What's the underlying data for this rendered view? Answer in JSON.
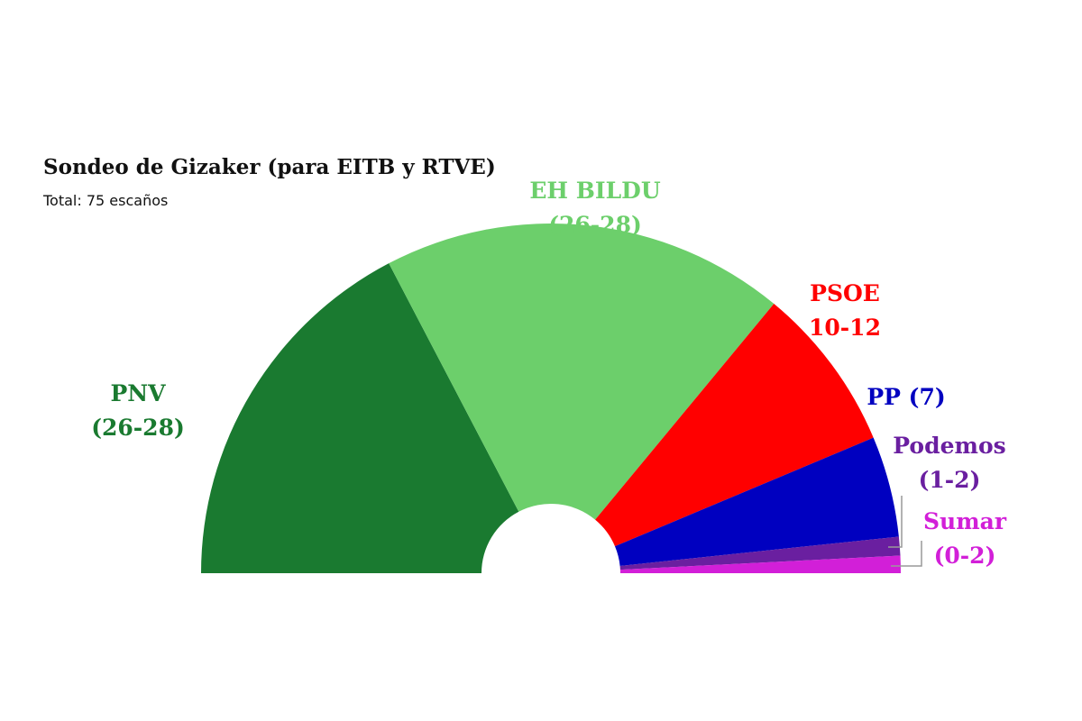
{
  "chart_data": {
    "type": "semicircle",
    "title": "Sondeo de Gizaker (para EITB y RTVE)",
    "subtitle": "Total: 75 escaños",
    "categories": [
      "PNV",
      "EH BILDU",
      "PSOE",
      "PP",
      "Podemos",
      "Sumar"
    ],
    "labels": [
      [
        "PNV",
        "(26-28)"
      ],
      [
        "EH BILDU",
        "(26-28)"
      ],
      [
        "PSOE",
        "10-12"
      ],
      [
        "PP (7)"
      ],
      [
        "Podemos",
        "(1-2)"
      ],
      [
        "Sumar",
        "(0-2)"
      ]
    ],
    "values": [
      26,
      28,
      11.5,
      7,
      1.3,
      1.2
    ],
    "colors": [
      "#1a7a30",
      "#6ccf6b",
      "#ff0000",
      "#0000c0",
      "#6a1fa0",
      "#d21fd8"
    ]
  }
}
